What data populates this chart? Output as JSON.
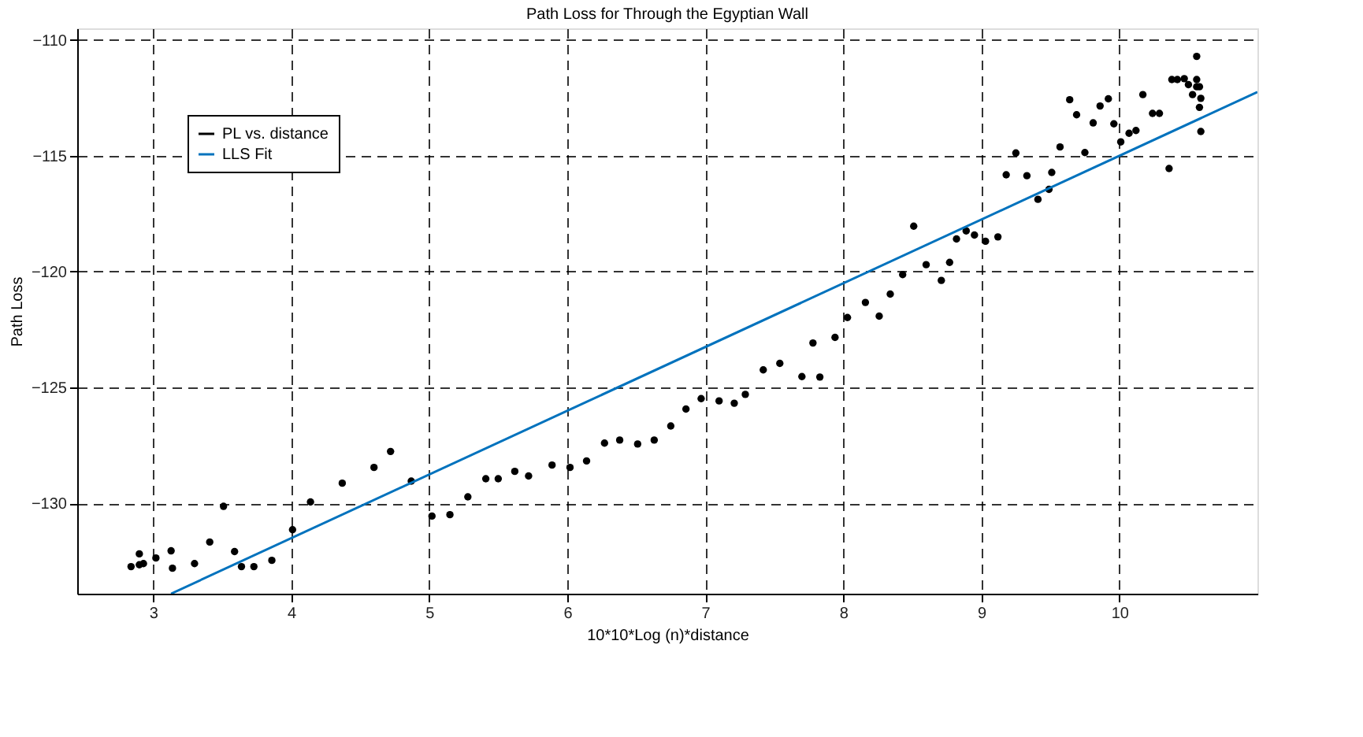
{
  "chart_data": {
    "type": "scatter",
    "title": "Path Loss for Through the Egyptian Wall",
    "xlabel": "10*10*Log (n)*distance",
    "ylabel": "Path Loss",
    "xlim": [
      2.45,
      11
    ],
    "ylim": [
      -133.9,
      -109.5
    ],
    "xticks": [
      3,
      4,
      5,
      6,
      7,
      8,
      9,
      10
    ],
    "yticks": [
      -130,
      -125,
      -120,
      -115,
      -110
    ],
    "grid": true,
    "legend": "top left",
    "series": [
      {
        "name": "PL vs. distance",
        "color": "#000000",
        "marker": "circle",
        "x": [
          2.84,
          2.9,
          2.9,
          2.93,
          3.02,
          3.13,
          3.14,
          3.3,
          3.41,
          3.51,
          3.59,
          3.64,
          3.73,
          3.86,
          4.01,
          4.14,
          4.37,
          4.6,
          4.72,
          4.87,
          5.02,
          5.15,
          5.28,
          5.41,
          5.5,
          5.62,
          5.72,
          5.89,
          6.02,
          6.14,
          6.27,
          6.38,
          6.51,
          6.63,
          6.75,
          6.86,
          6.97,
          7.1,
          7.21,
          7.29,
          7.42,
          7.54,
          7.7,
          7.83,
          7.78,
          7.94,
          8.03,
          8.16,
          8.26,
          8.34,
          8.43,
          8.51,
          8.6,
          8.71,
          8.77,
          8.82,
          8.89,
          8.95,
          9.03,
          9.12,
          9.18,
          9.25,
          9.33,
          9.41,
          9.49,
          9.51,
          9.57,
          9.64,
          9.69,
          9.75,
          9.81,
          9.86,
          9.92,
          9.96,
          10.01,
          10.07,
          10.12,
          10.17,
          10.24,
          10.29,
          10.36,
          10.38,
          10.42,
          10.47,
          10.5,
          10.53,
          10.56,
          10.56,
          10.56,
          10.58,
          10.59,
          10.58,
          10.59
        ],
        "values": [
          -132.73,
          -132.18,
          -132.65,
          -132.6,
          -132.36,
          -132.05,
          -132.8,
          -132.6,
          -131.67,
          -130.13,
          -132.08,
          -132.73,
          -132.73,
          -132.46,
          -131.14,
          -129.94,
          -129.13,
          -128.45,
          -127.76,
          -129.04,
          -130.55,
          -130.49,
          -129.72,
          -128.94,
          -128.94,
          -128.62,
          -128.82,
          -128.35,
          -128.45,
          -128.17,
          -127.4,
          -127.27,
          -127.44,
          -127.27,
          -126.66,
          -125.93,
          -125.48,
          -125.58,
          -125.68,
          -125.3,
          -124.24,
          -123.96,
          -124.53,
          -124.55,
          -123.08,
          -122.84,
          -121.98,
          -121.33,
          -121.92,
          -120.97,
          -120.13,
          -118.04,
          -119.7,
          -120.38,
          -119.6,
          -118.59,
          -118.24,
          -118.42,
          -118.69,
          -118.5,
          -115.82,
          -114.88,
          -115.86,
          -116.88,
          -116.45,
          -115.72,
          -114.62,
          -112.58,
          -113.23,
          -114.86,
          -113.58,
          -112.85,
          -112.54,
          -113.62,
          -114.4,
          -114.03,
          -113.91,
          -112.36,
          -113.17,
          -113.17,
          -115.55,
          -111.71,
          -111.71,
          -111.67,
          -111.93,
          -112.36,
          -111.71,
          -110.71,
          -112.02,
          -112.02,
          -112.52,
          -112.91,
          -113.95
        ]
      },
      {
        "name": "LLS Fit",
        "type": "line",
        "color": "#0072bd",
        "line_style": "solid",
        "x": [
          3.13,
          11
        ],
        "values": [
          -133.9,
          -112.25
        ]
      }
    ]
  }
}
